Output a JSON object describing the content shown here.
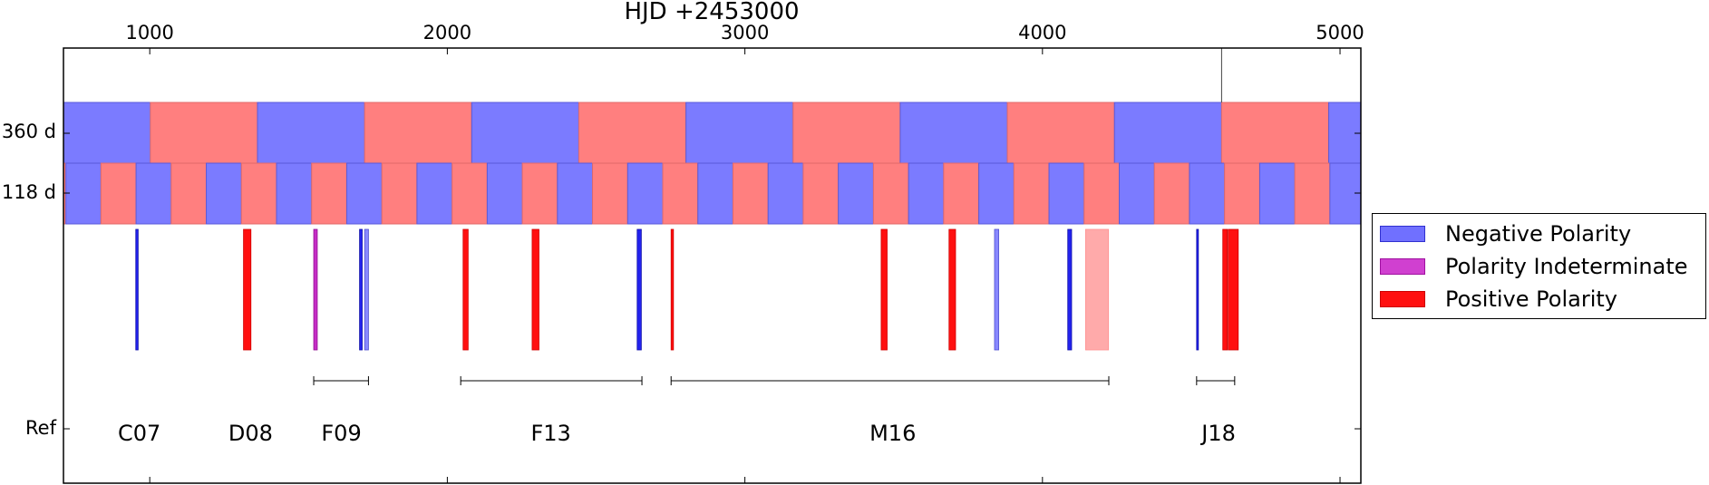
{
  "chart_data": {
    "type": "timeline",
    "title": "HJD +2453000",
    "xlim": [
      710,
      5070
    ],
    "xticks": [
      1000,
      2000,
      3000,
      4000,
      5000
    ],
    "row_labels": {
      "p360": "360 d",
      "p118": "118 d",
      "ref": "Ref"
    },
    "colors": {
      "negative": "#7b7bff",
      "positive": "#ff7f7f",
      "negative_obs": "#2222ee",
      "positive_obs": "#ff1010",
      "indeterminate_obs": "#c62cc6",
      "negative_faint": "#8888ff",
      "positive_faint": "#ffaaaa"
    },
    "cycle_360": {
      "boundaries": [
        710,
        1002,
        1362,
        1722,
        2082,
        2442,
        2802,
        3162,
        3522,
        3882,
        4242,
        4602,
        4962,
        5070
      ],
      "first_polarity": "negative"
    },
    "cycle_118": {
      "boundaries": [
        710,
        718,
        836,
        954,
        1072,
        1190,
        1308,
        1426,
        1544,
        1662,
        1780,
        1898,
        2016,
        2134,
        2252,
        2370,
        2488,
        2606,
        2724,
        2842,
        2960,
        3078,
        3196,
        3314,
        3432,
        3550,
        3668,
        3786,
        3904,
        4022,
        4140,
        4258,
        4376,
        4494,
        4612,
        4730,
        4848,
        4966,
        5070
      ],
      "first_polarity": "positive"
    },
    "observations": [
      {
        "start": 953,
        "end": 961,
        "polarity": "negative"
      },
      {
        "start": 1315,
        "end": 1340,
        "polarity": "positive"
      },
      {
        "start": 1551,
        "end": 1563,
        "polarity": "indeterminate"
      },
      {
        "start": 1705,
        "end": 1714,
        "polarity": "negative"
      },
      {
        "start": 1722,
        "end": 1735,
        "polarity": "negative_faint"
      },
      {
        "start": 2053,
        "end": 2070,
        "polarity": "positive"
      },
      {
        "start": 2285,
        "end": 2308,
        "polarity": "positive"
      },
      {
        "start": 2638,
        "end": 2652,
        "polarity": "negative"
      },
      {
        "start": 2752,
        "end": 2760,
        "polarity": "positive"
      },
      {
        "start": 3458,
        "end": 3478,
        "polarity": "positive"
      },
      {
        "start": 3686,
        "end": 3708,
        "polarity": "positive"
      },
      {
        "start": 3839,
        "end": 3853,
        "polarity": "negative_faint"
      },
      {
        "start": 4085,
        "end": 4098,
        "polarity": "negative"
      },
      {
        "start": 4145,
        "end": 4222,
        "polarity": "positive_faint"
      },
      {
        "start": 4518,
        "end": 4523,
        "polarity": "negative"
      },
      {
        "start": 4606,
        "end": 4621,
        "polarity": "positive"
      },
      {
        "start": 4624,
        "end": 4658,
        "polarity": "positive"
      }
    ],
    "refs": [
      {
        "label": "C07",
        "x": 965,
        "span": null
      },
      {
        "label": "D08",
        "x": 1339,
        "span": null
      },
      {
        "label": "F09",
        "x": 1644,
        "span": [
          1551,
          1735
        ]
      },
      {
        "label": "F13",
        "x": 2348,
        "span": [
          2045,
          2654
        ]
      },
      {
        "label": "M16",
        "x": 3497,
        "span": [
          2752,
          4223
        ]
      },
      {
        "label": "J18",
        "x": 4592,
        "span": [
          4518,
          4646
        ]
      }
    ],
    "marker_line_x": 4602,
    "legend": [
      {
        "label": "Negative Polarity",
        "color": "#7070ff",
        "border": "#3030d0"
      },
      {
        "label": "Polarity Indeterminate",
        "color": "#d040d0",
        "border": "#a010a0"
      },
      {
        "label": "Positive Polarity",
        "color": "#ff1010",
        "border": "#cc0000"
      }
    ]
  }
}
